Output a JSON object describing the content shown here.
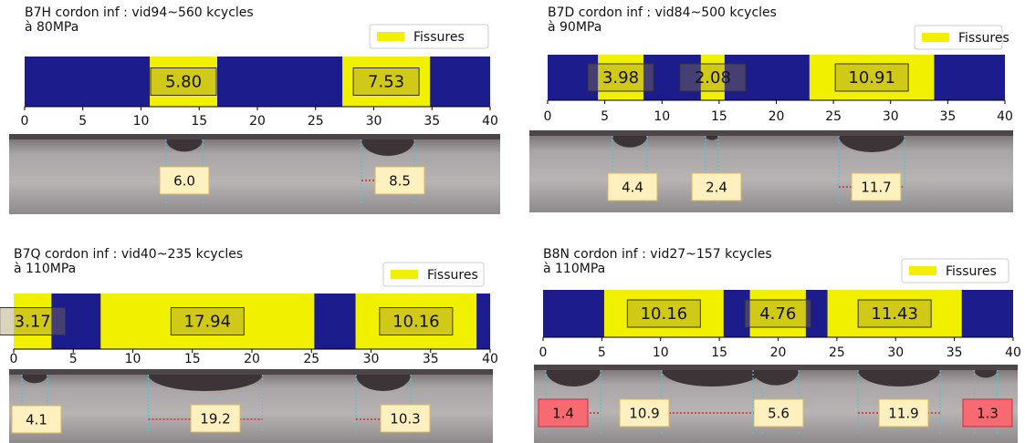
{
  "chart_data": [
    {
      "type": "broken_bar",
      "title": "B7H cordon inf : vid94~560 kcycles",
      "subtitle": "à 80MPa",
      "background_color": "#1c1c8c",
      "legend": "upper right",
      "series": [
        {
          "name": "Fissures",
          "color": "#f0f000",
          "starts": [
            10.75,
            27.3
          ],
          "values": [
            5.8,
            7.53
          ],
          "value_labels": [
            "5.80",
            "7.53"
          ]
        }
      ],
      "xlim": [
        0,
        40
      ],
      "xticks": [
        0,
        5,
        10,
        15,
        20,
        25,
        30,
        35,
        40
      ],
      "photo_labels": [
        "6.0",
        "8.5"
      ]
    },
    {
      "type": "broken_bar",
      "title": "B7D cordon inf : vid84~500 kcycles",
      "subtitle": "à 90MPa",
      "background_color": "#1c1c8c",
      "legend": "upper right",
      "series": [
        {
          "name": "Fissures",
          "color": "#f0f000",
          "starts": [
            4.4,
            13.4,
            22.9
          ],
          "values": [
            3.98,
            2.08,
            10.91
          ],
          "value_labels": [
            "3.98",
            "2.08",
            "10.91"
          ]
        }
      ],
      "xlim": [
        0,
        40
      ],
      "xticks": [
        0,
        5,
        10,
        15,
        20,
        25,
        30,
        35,
        40
      ],
      "photo_labels": [
        "4.4",
        "2.4",
        "11.7"
      ]
    },
    {
      "type": "broken_bar",
      "title": "B7Q cordon inf : vid40~235 kcycles",
      "subtitle": "à 110MPa",
      "background_color": "#1c1c8c",
      "legend": "upper right",
      "series": [
        {
          "name": "Fissures",
          "color": "#f0f000",
          "starts": [
            0,
            7.3,
            28.7
          ],
          "values": [
            3.17,
            17.94,
            10.16
          ],
          "value_labels": [
            "3.17",
            "17.94",
            "10.16"
          ]
        }
      ],
      "xlim": [
        0,
        40
      ],
      "xticks": [
        0,
        5,
        10,
        15,
        20,
        25,
        30,
        35,
        40
      ],
      "photo_labels": [
        "4.1",
        "19.2",
        "10.3"
      ]
    },
    {
      "type": "broken_bar",
      "title": "B8N cordon inf : vid27~157 kcycles",
      "subtitle": "à 110MPa",
      "background_color": "#1c1c8c",
      "legend": "upper right",
      "series": [
        {
          "name": "Fissures",
          "color": "#f0f000",
          "starts": [
            5.2,
            17.6,
            24.2
          ],
          "values": [
            10.16,
            4.76,
            11.43
          ],
          "value_labels": [
            "10.16",
            "4.76",
            "11.43"
          ]
        }
      ],
      "xlim": [
        0,
        40
      ],
      "xticks": [
        0,
        5,
        10,
        15,
        20,
        25,
        30,
        35,
        40
      ],
      "photo_labels": [
        "1.4",
        "10.9",
        "5.6",
        "11.9",
        "1.3"
      ]
    }
  ]
}
